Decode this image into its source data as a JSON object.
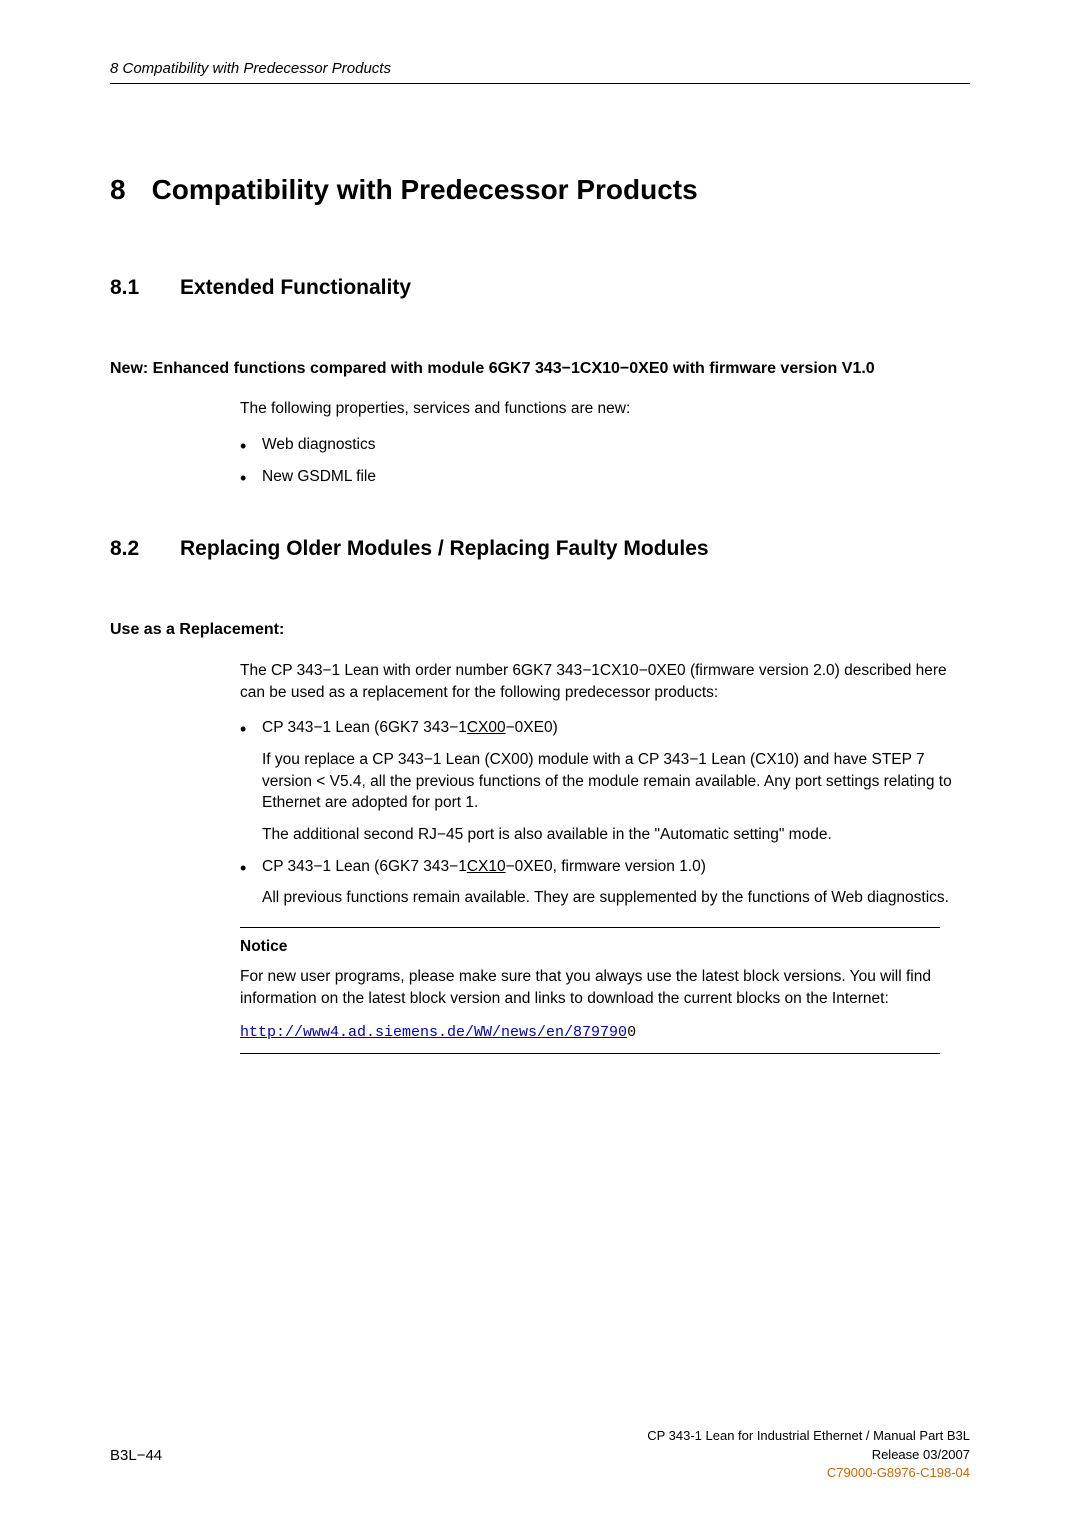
{
  "header": {
    "runningTitle": "8   Compatibility with Predecessor Products"
  },
  "chapter": {
    "number": "8",
    "title": "Compatibility with Predecessor Products"
  },
  "section81": {
    "number": "8.1",
    "title": "Extended Functionality",
    "subHeading": "New: Enhanced functions compared with module 6GK7 343−1CX10−0XE0 with firmware version V1.0",
    "introText": "The following properties, services and functions are new:",
    "bullets": [
      "Web diagnostics",
      "New GSDML file"
    ]
  },
  "section82": {
    "number": "8.2",
    "title": "Replacing Older Modules / Replacing Faulty Modules",
    "subHeading": "Use as a Replacement:",
    "introText": "The CP 343−1 Lean with order number 6GK7 343−1CX10−0XE0 (firmware version 2.0) described here can be used as a replacement for the following predecessor products:",
    "items": [
      {
        "prefix": "CP 343−1 Lean (6GK7 343−1",
        "underlined": "CX00",
        "suffix": "−0XE0)",
        "para1": "If you replace a CP 343−1 Lean (CX00) module with a CP 343−1 Lean (CX10) and have STEP 7 version < V5.4, all the previous functions of the module remain available. Any port settings relating to Ethernet are adopted for port 1.",
        "para2": "The additional second RJ−45 port is also available in the \"Automatic setting\" mode."
      },
      {
        "prefix": "CP 343−1 Lean (6GK7 343−1",
        "underlined": "CX10",
        "suffix": "−0XE0, firmware version 1.0)",
        "para1": "All previous functions remain available. They are supplemented by the functions of Web diagnostics.",
        "para2": ""
      }
    ],
    "notice": {
      "heading": "Notice",
      "text": "For new user programs, please make sure that you always use the latest block versions. You will find information on the latest block version and links to download the current blocks on the Internet:",
      "link": "http://www4.ad.siemens.de/WW/news/en/879790",
      "linkTrail": "0"
    }
  },
  "footer": {
    "left": "B3L−44",
    "right1": "CP 343-1 Lean for Industrial Ethernet / Manual Part B3L",
    "right2": "Release 03/2007",
    "right3": "C79000-G8976-C198-04"
  },
  "colors": {
    "link": "#0000c0",
    "footerAccent": "#cc6600",
    "text": "#000000",
    "background": "#ffffff"
  },
  "typography": {
    "bodyFontSize": 15.5,
    "chapterFontSize": 28,
    "sectionFontSize": 21,
    "headerFontSize": 15,
    "footerFontSize": 13
  }
}
